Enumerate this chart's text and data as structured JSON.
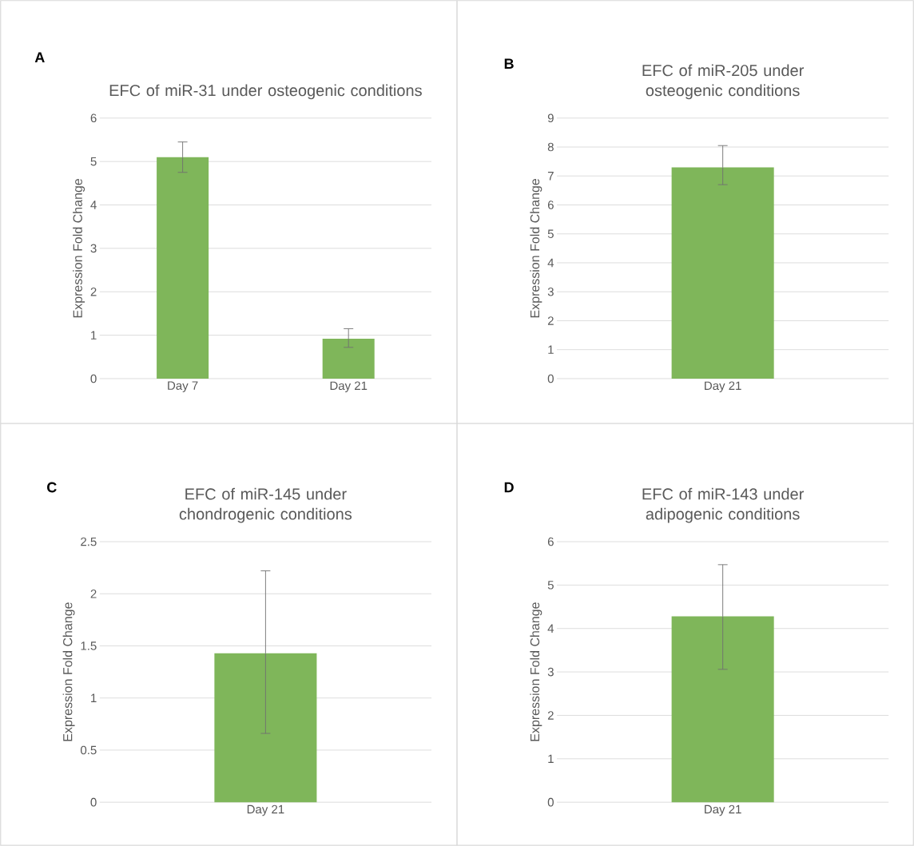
{
  "chart_data": [
    {
      "type": "bar",
      "title": "EFC of miR-31 under osteogenic conditions",
      "ylabel": "Expression Fold Change",
      "annotations": [
        "A"
      ],
      "categories": [
        "Day 7",
        "Day 21"
      ],
      "values": [
        5.1,
        0.92
      ],
      "errors": [
        [
          4.75,
          5.45
        ],
        [
          0.72,
          1.15
        ]
      ],
      "color": "#7fb65a",
      "ylim": [
        0,
        6
      ],
      "yticks": [
        0,
        1,
        2,
        3,
        4,
        5,
        6
      ],
      "grid": "y"
    },
    {
      "type": "bar",
      "title": "EFC of miR-205 under osteogenic conditions",
      "ylabel": "Expression Fold Change",
      "annotations": [
        "B"
      ],
      "categories": [
        "Day 21"
      ],
      "values": [
        7.3
      ],
      "errors": [
        [
          6.7,
          8.05
        ]
      ],
      "color": "#7fb65a",
      "ylim": [
        0,
        9
      ],
      "yticks": [
        0,
        1,
        2,
        3,
        4,
        5,
        6,
        7,
        8,
        9
      ],
      "grid": "y"
    },
    {
      "type": "bar",
      "title": "EFC of miR-145 under chondrogenic conditions",
      "ylabel": "Expression Fold Change",
      "annotations": [
        "C"
      ],
      "categories": [
        "Day 21"
      ],
      "values": [
        1.43
      ],
      "errors": [
        [
          0.66,
          2.22
        ]
      ],
      "color": "#7fb65a",
      "ylim": [
        0,
        2.5
      ],
      "yticks": [
        0,
        0.5,
        1,
        1.5,
        2,
        2.5
      ],
      "grid": "y"
    },
    {
      "type": "bar",
      "title": "EFC of miR-143 under adipogenic conditions",
      "ylabel": "Expression Fold Change",
      "annotations": [
        "D"
      ],
      "categories": [
        "Day 21"
      ],
      "values": [
        4.28
      ],
      "errors": [
        [
          3.06,
          5.47
        ]
      ],
      "color": "#7fb65a",
      "ylim": [
        0,
        6
      ],
      "yticks": [
        0,
        1,
        2,
        3,
        4,
        5,
        6
      ],
      "grid": "y"
    }
  ]
}
